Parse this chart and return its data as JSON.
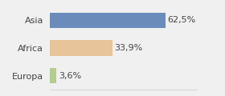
{
  "categories": [
    "Asia",
    "Africa",
    "Europa"
  ],
  "values": [
    62.5,
    33.9,
    3.6
  ],
  "bar_colors": [
    "#6b8cba",
    "#e8c49a",
    "#b5cc8e"
  ],
  "labels": [
    "62,5%",
    "33,9%",
    "3,6%"
  ],
  "background_color": "#f0f0f0",
  "xlim": [
    0,
    80
  ],
  "bar_height": 0.55,
  "label_fontsize": 8,
  "tick_fontsize": 8
}
